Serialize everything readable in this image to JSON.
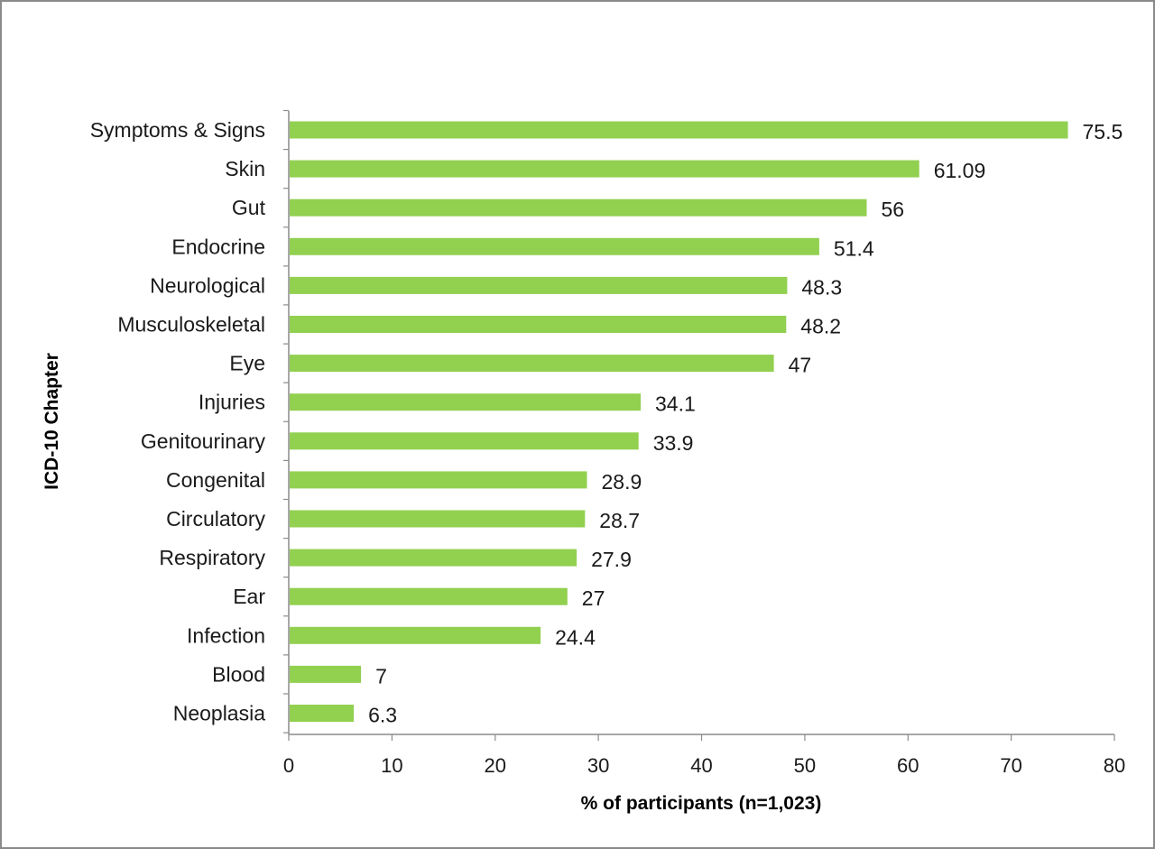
{
  "chart_data": {
    "type": "bar",
    "orientation": "horizontal",
    "title": "",
    "xlabel": "% of participants  (n=1,023)",
    "ylabel": "ICD-10 Chapter",
    "categories": [
      "Symptoms & Signs",
      "Skin",
      "Gut",
      "Endocrine",
      "Neurological",
      "Musculoskeletal",
      "Eye",
      "Injuries",
      "Genitourinary",
      "Congenital",
      "Circulatory",
      "Respiratory",
      "Ear",
      "Infection",
      "Blood",
      "Neoplasia"
    ],
    "values": [
      75.5,
      61.09,
      56,
      51.4,
      48.3,
      48.2,
      47,
      34.1,
      33.9,
      28.9,
      28.7,
      27.9,
      27,
      24.4,
      7,
      6.3
    ],
    "value_labels": [
      "75.5",
      "61.09",
      "56",
      "51.4",
      "48.3",
      "48.2",
      "47",
      "34.1",
      "33.9",
      "28.9",
      "28.7",
      "27.9",
      "27",
      "24.4",
      "7",
      "6.3"
    ],
    "xlim": [
      0,
      80
    ],
    "xticks": [
      0,
      10,
      20,
      30,
      40,
      50,
      60,
      70,
      80
    ],
    "xtick_labels": [
      "0",
      "10",
      "20",
      "30",
      "40",
      "50",
      "60",
      "70",
      "80"
    ],
    "grid": false,
    "legend": "none",
    "bar_color": "#92d050"
  }
}
